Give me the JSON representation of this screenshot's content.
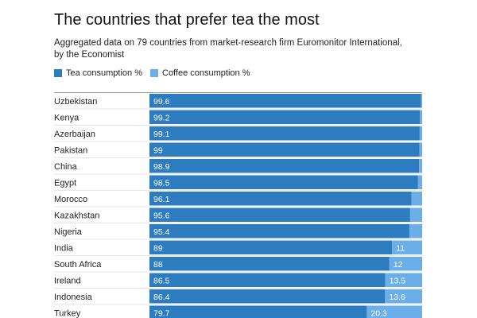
{
  "chart_data": {
    "type": "bar",
    "orientation": "horizontal",
    "stacked": true,
    "title": "The countries that prefer tea the most",
    "subtitle": "Aggregated data on 79 countries from market-research firm Euromonitor International, by the Economist",
    "categories": [
      "Uzbekistan",
      "Kenya",
      "Azerbaijan",
      "Pakistan",
      "China",
      "Egypt",
      "Morocco",
      "Kazakhstan",
      "Nigeria",
      "India",
      "South Africa",
      "Ireland",
      "Indonesia",
      "Turkey"
    ],
    "series": [
      {
        "name": "Tea consumption %",
        "color": "#2e7cc0",
        "values": [
          99.6,
          99.2,
          99.1,
          99,
          98.9,
          98.5,
          96.1,
          95.6,
          95.4,
          89,
          88,
          86.5,
          86.4,
          79.7
        ]
      },
      {
        "name": "Coffee consumption %",
        "color": "#6aafe8",
        "values": [
          0.4,
          0.8,
          0.9,
          1,
          1.1,
          1.5,
          3.9,
          4.4,
          4.6,
          11,
          12,
          13.5,
          13.6,
          20.3
        ]
      }
    ],
    "xlim": [
      0,
      100
    ],
    "value_labels_shown_min": 10,
    "legend_position": "top-left",
    "grid": false
  }
}
